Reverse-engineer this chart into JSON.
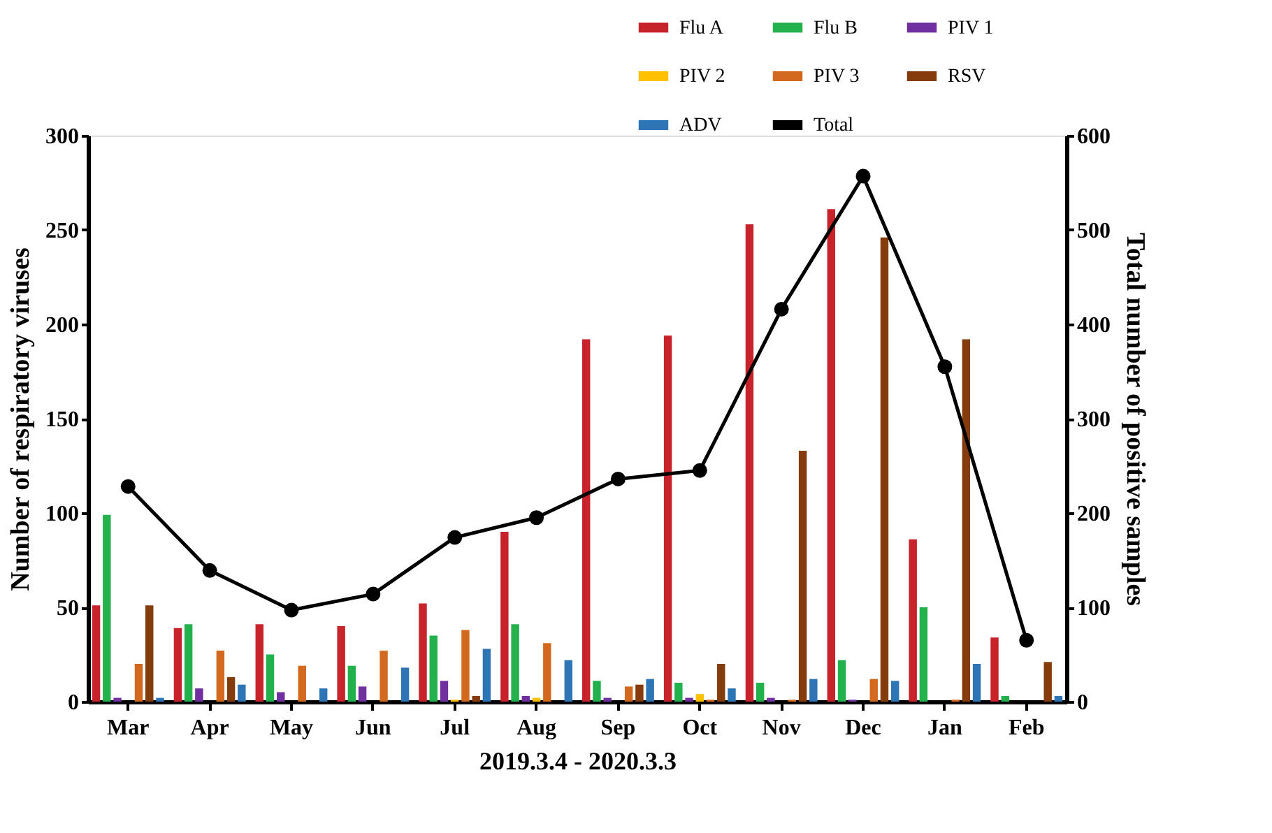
{
  "chart_data": {
    "type": "bar",
    "xlabel": "2019.3.4 - 2020.3.3",
    "ylabel": "Number of respiratory viruses",
    "y2label": "Total number of positive samples",
    "categories": [
      "Mar",
      "Apr",
      "May",
      "Jun",
      "Jul",
      "Aug",
      "Sep",
      "Oct",
      "Nov",
      "Dec",
      "Jan",
      "Feb"
    ],
    "series": [
      {
        "name": "Flu A",
        "color": "#c8232a",
        "values": [
          51,
          39,
          41,
          40,
          52,
          90,
          192,
          194,
          253,
          261,
          86,
          34
        ]
      },
      {
        "name": "Flu B",
        "color": "#22b14c",
        "values": [
          99,
          41,
          25,
          19,
          35,
          41,
          11,
          10,
          10,
          22,
          50,
          3
        ]
      },
      {
        "name": "PIV 1",
        "color": "#7030a0",
        "values": [
          2,
          7,
          5,
          8,
          11,
          3,
          2,
          2,
          2,
          1,
          0,
          0
        ]
      },
      {
        "name": "PIV 2",
        "color": "#ffc000",
        "values": [
          0,
          0,
          0,
          0,
          1,
          2,
          0,
          4,
          0,
          0,
          0,
          0
        ]
      },
      {
        "name": "PIV 3",
        "color": "#d2691e",
        "values": [
          20,
          27,
          19,
          27,
          38,
          31,
          8,
          1,
          1,
          12,
          1,
          0
        ]
      },
      {
        "name": "RSV",
        "color": "#843c0c",
        "values": [
          51,
          13,
          0,
          0,
          3,
          0,
          9,
          20,
          133,
          246,
          192,
          21
        ]
      },
      {
        "name": "ADV",
        "color": "#2e75b6",
        "values": [
          2,
          9,
          7,
          18,
          28,
          22,
          12,
          7,
          12,
          11,
          20,
          3
        ]
      },
      {
        "name": "Total",
        "color": "#000000",
        "type": "line",
        "axis": "y2",
        "marker": "circle",
        "values": [
          228,
          139,
          97,
          114,
          174,
          195,
          236,
          245,
          416,
          557,
          355,
          65
        ]
      }
    ],
    "ylim": [
      0,
      300
    ],
    "yticks": [
      0,
      50,
      100,
      150,
      200,
      250,
      300
    ],
    "y2lim": [
      0,
      600
    ],
    "y2ticks": [
      0,
      100,
      200,
      300,
      400,
      500,
      600
    ],
    "grid": false,
    "legend": "top right"
  }
}
